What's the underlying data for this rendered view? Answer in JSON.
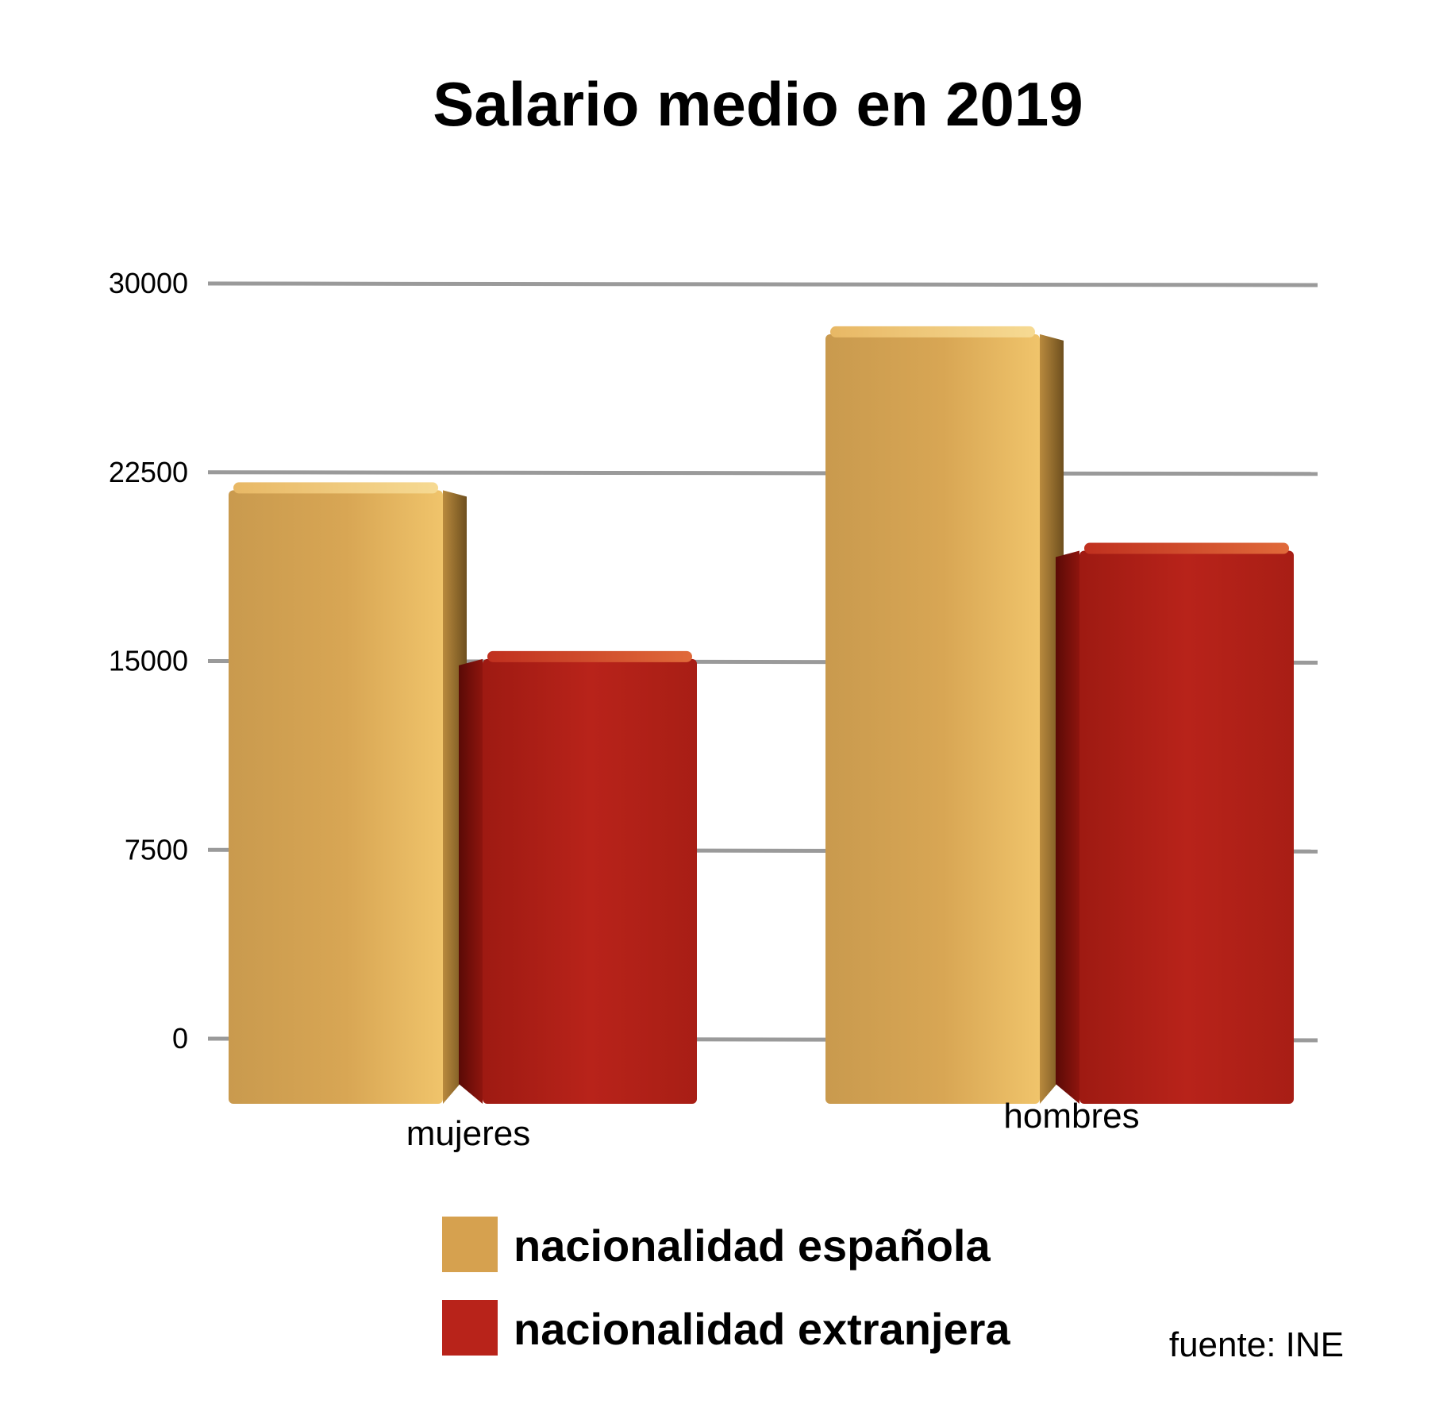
{
  "chart_data": {
    "type": "bar",
    "title": "Salario medio en 2019",
    "xlabel": "",
    "ylabel": "",
    "ylim": [
      0,
      30000
    ],
    "yticks": [
      "0",
      "7500",
      "15000",
      "22500",
      "30000"
    ],
    "categories": [
      "mujeres",
      "hombres"
    ],
    "series": [
      {
        "name": "nacionalidad española",
        "color": "#D6A14F",
        "values": [
          22100,
          28300
        ]
      },
      {
        "name": "nacionalidad extranjera",
        "color": "#B8231A",
        "values": [
          15400,
          19700
        ]
      }
    ],
    "grid": true,
    "legend_position": "bottom-center",
    "style": "3d"
  },
  "source": "fuente: INE"
}
